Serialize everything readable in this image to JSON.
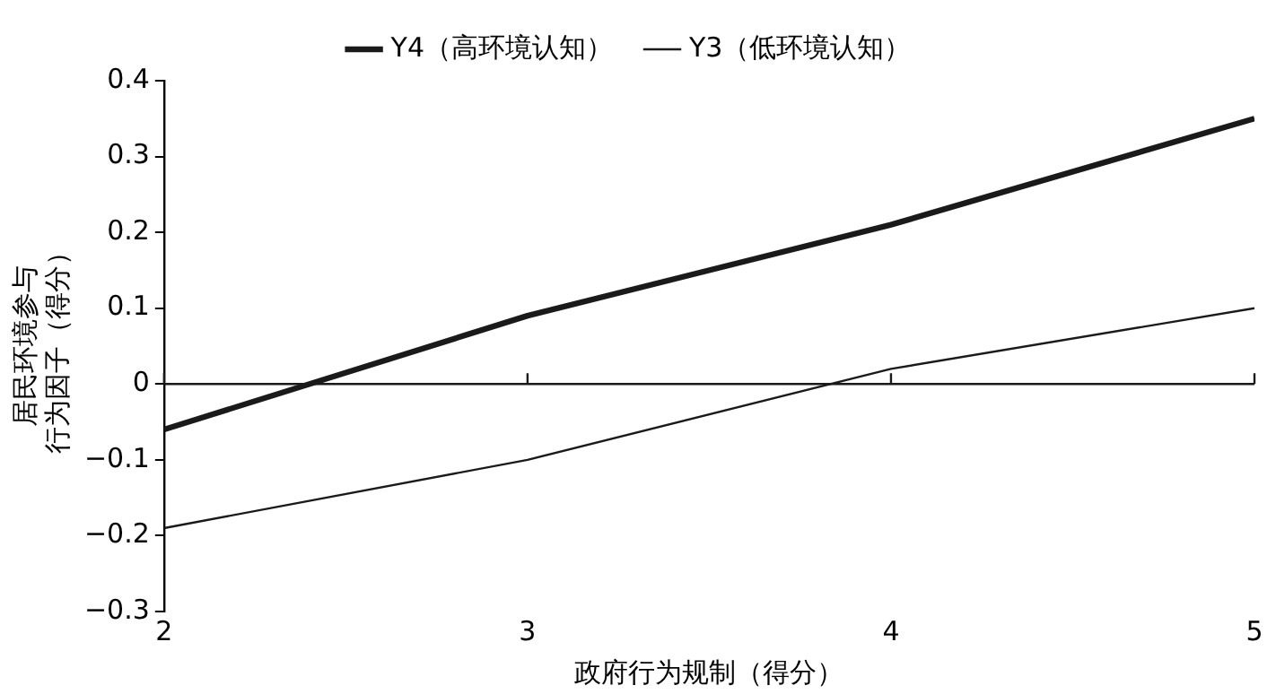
{
  "chart_data": {
    "type": "line",
    "xlabel": "政府行为规制（得分）",
    "ylabel": "居民环境参与行为因子（得分）",
    "x": [
      2,
      3,
      4,
      5
    ],
    "xlim": [
      2,
      5
    ],
    "xticks": [
      2,
      3,
      4,
      5
    ],
    "ylim": [
      -0.3,
      0.4
    ],
    "yticks": [
      -0.3,
      -0.2,
      -0.1,
      0,
      0.1,
      0.2,
      0.3,
      0.4
    ],
    "series": [
      {
        "name": "Y4（高环境认知）",
        "color": "#1a1a1a",
        "values": [
          -0.06,
          0.09,
          0.21,
          0.35
        ]
      },
      {
        "name": "Y3（低环境认知）",
        "color": "#1a1a1a",
        "values": [
          -0.19,
          -0.1,
          0.02,
          0.1
        ]
      }
    ],
    "ref_lines": [
      {
        "axis": "y",
        "value": 0,
        "color": "#1a1a1a"
      }
    ],
    "legend": "top",
    "grid": false,
    "marker": "none",
    "line_style": "solid"
  }
}
